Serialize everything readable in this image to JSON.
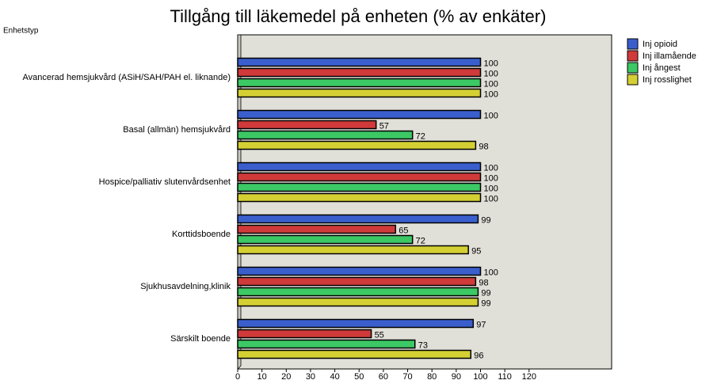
{
  "chart_data": {
    "type": "hbar",
    "title": "Tillgång till läkemedel på enheten (% av enkäter)",
    "y_label": "Enhetstyp",
    "categories": [
      "Avancerad hemsjukvård (ASiH/SAH/PAH el. liknande)",
      "Basal (allmän) hemsjukvård",
      "Hospice/palliativ slutenvårdsenhet",
      "Korttidsboende",
      "Sjukhusavdelning,klinik",
      "Särskilt boende"
    ],
    "series": [
      {
        "name": "Inj opioid",
        "color": "#3a5fcd",
        "values": [
          100,
          100,
          100,
          99,
          100,
          97
        ]
      },
      {
        "name": "Inj illamående",
        "color": "#d03a3a",
        "values": [
          100,
          57,
          100,
          65,
          98,
          55
        ]
      },
      {
        "name": "Inj ångest",
        "color": "#3cc864",
        "values": [
          100,
          72,
          100,
          72,
          99,
          73
        ]
      },
      {
        "name": "Inj rosslighet",
        "color": "#d4d034",
        "values": [
          100,
          98,
          100,
          95,
          99,
          96
        ]
      }
    ],
    "xlim": [
      0,
      154
    ],
    "xticks": [
      0,
      10,
      20,
      30,
      40,
      50,
      60,
      70,
      80,
      90,
      100,
      110,
      120
    ],
    "legend": "top-right"
  }
}
